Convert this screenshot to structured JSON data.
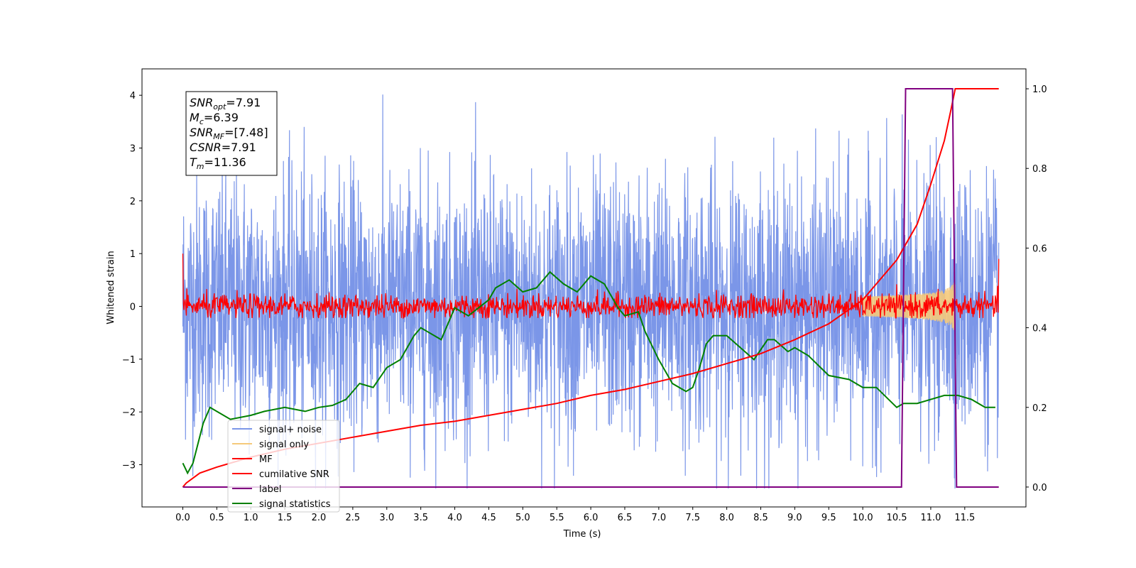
{
  "chart_data": {
    "type": "line",
    "xlabel": "Time (s)",
    "ylabel": "Whitened strain",
    "xlim": [
      -0.6,
      12.4
    ],
    "ylim": [
      -3.8,
      4.5
    ],
    "y2lim": [
      -0.05,
      1.05
    ],
    "x_ticks": [
      "0.0",
      "0.5",
      "1.0",
      "1.5",
      "2.0",
      "2.5",
      "3.0",
      "3.5",
      "4.0",
      "4.5",
      "5.0",
      "5.5",
      "6.0",
      "6.5",
      "7.0",
      "7.5",
      "8.0",
      "8.5",
      "9.0",
      "9.5",
      "10.0",
      "10.5",
      "11.0",
      "11.5"
    ],
    "y_ticks": [
      "−3",
      "−2",
      "−1",
      "0",
      "1",
      "2",
      "3",
      "4"
    ],
    "y2_ticks": [
      "0.0",
      "0.2",
      "0.4",
      "0.6",
      "0.8",
      "1.0"
    ],
    "grid": false,
    "legend_position": "lower-left",
    "info_box": {
      "lines": [
        {
          "main": "SNR",
          "sub": "opt",
          "rest": "=7.91"
        },
        {
          "main": "M",
          "sub": "c",
          "rest": "=6.39"
        },
        {
          "main": "SNR",
          "sub": "MF",
          "rest": "=[7.48]"
        },
        {
          "main": "CSNR",
          "sub": "",
          "rest": "=7.91"
        },
        {
          "main": "T",
          "sub": "m",
          "rest": "=11.36"
        }
      ]
    },
    "series": [
      {
        "name": "signal+ noise",
        "color": "#7b96e8",
        "kind": "noise",
        "axis": "left",
        "x_range": [
          0.0,
          12.0
        ],
        "typical_abs_value": 1.9,
        "max": 4.18,
        "min": -3.45
      },
      {
        "name": "signal only",
        "color": "#f5c97a",
        "kind": "chirp",
        "axis": "left",
        "x_range": [
          10.0,
          11.36
        ],
        "peak_amplitude": 0.55
      },
      {
        "name": "MF",
        "color": "#ff0000",
        "kind": "noise-band",
        "axis": "left",
        "x_range": [
          0.0,
          12.0
        ],
        "typical_abs_value": 0.2,
        "max": 0.5,
        "min": -0.22,
        "start_value": 1.0,
        "end_value": 0.9
      },
      {
        "name": "cumilative SNR",
        "color": "#ff0000",
        "axis": "right",
        "x": [
          0.0,
          0.05,
          0.25,
          0.5,
          1.0,
          1.5,
          2.0,
          2.5,
          3.0,
          3.5,
          4.0,
          4.5,
          5.0,
          5.5,
          6.0,
          6.5,
          7.0,
          7.5,
          8.0,
          8.5,
          9.0,
          9.5,
          10.0,
          10.5,
          10.8,
          11.0,
          11.2,
          11.3,
          11.36,
          12.0
        ],
        "values": [
          0.0,
          0.01,
          0.035,
          0.05,
          0.075,
          0.095,
          0.11,
          0.125,
          0.14,
          0.155,
          0.165,
          0.18,
          0.195,
          0.21,
          0.23,
          0.245,
          0.265,
          0.285,
          0.31,
          0.335,
          0.37,
          0.41,
          0.47,
          0.57,
          0.66,
          0.76,
          0.87,
          0.95,
          1.0,
          1.0
        ]
      },
      {
        "name": "label",
        "color": "#800080",
        "axis": "right",
        "x": [
          0.0,
          10.57,
          10.63,
          11.32,
          11.38,
          12.0
        ],
        "values": [
          0.0,
          0.0,
          1.0,
          1.0,
          0.0,
          0.0
        ]
      },
      {
        "name": "signal statistics",
        "color": "#008000",
        "axis": "right",
        "x": [
          0.0,
          0.07,
          0.15,
          0.3,
          0.4,
          0.5,
          0.7,
          1.0,
          1.2,
          1.5,
          1.8,
          2.0,
          2.2,
          2.4,
          2.6,
          2.8,
          3.0,
          3.2,
          3.3,
          3.4,
          3.5,
          3.6,
          3.8,
          4.0,
          4.2,
          4.5,
          4.6,
          4.8,
          5.0,
          5.2,
          5.4,
          5.6,
          5.8,
          6.0,
          6.2,
          6.4,
          6.5,
          6.7,
          6.8,
          7.0,
          7.2,
          7.4,
          7.5,
          7.6,
          7.7,
          7.8,
          8.0,
          8.2,
          8.4,
          8.6,
          8.7,
          8.9,
          9.0,
          9.2,
          9.5,
          9.8,
          10.0,
          10.2,
          10.5,
          10.6,
          10.8,
          11.0,
          11.2,
          11.4,
          11.6,
          11.8,
          11.95
        ],
        "values": [
          0.06,
          0.035,
          0.06,
          0.16,
          0.2,
          0.19,
          0.17,
          0.18,
          0.19,
          0.2,
          0.19,
          0.2,
          0.205,
          0.22,
          0.26,
          0.25,
          0.3,
          0.32,
          0.35,
          0.38,
          0.4,
          0.39,
          0.37,
          0.45,
          0.43,
          0.47,
          0.5,
          0.52,
          0.49,
          0.5,
          0.54,
          0.51,
          0.49,
          0.53,
          0.51,
          0.45,
          0.43,
          0.44,
          0.39,
          0.32,
          0.26,
          0.24,
          0.25,
          0.3,
          0.36,
          0.38,
          0.38,
          0.35,
          0.32,
          0.37,
          0.37,
          0.34,
          0.35,
          0.33,
          0.28,
          0.27,
          0.25,
          0.25,
          0.2,
          0.21,
          0.21,
          0.22,
          0.23,
          0.23,
          0.22,
          0.2,
          0.2
        ]
      }
    ]
  }
}
